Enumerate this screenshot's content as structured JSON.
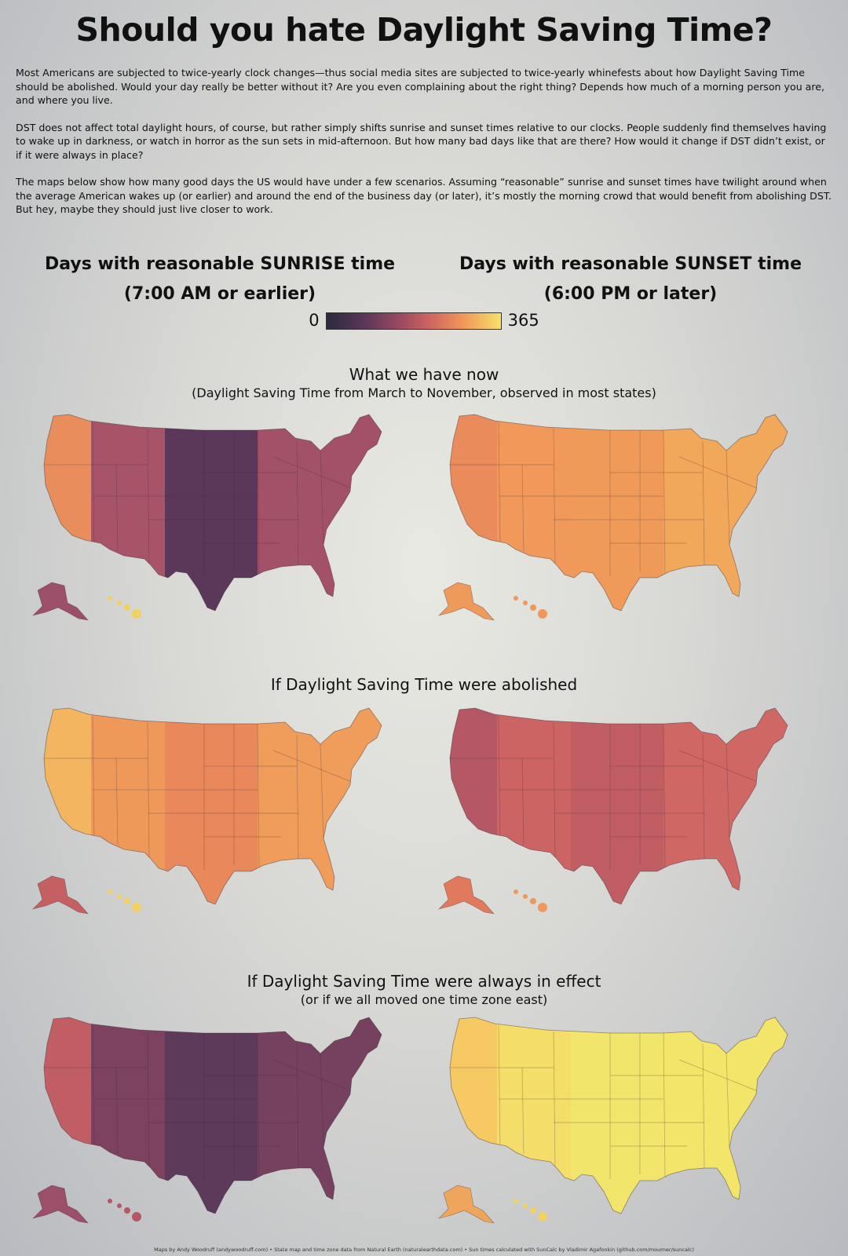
{
  "title": "Should you hate Daylight Saving Time?",
  "intro": [
    "Most Americans are subjected to twice-yearly clock changes—thus social media sites are subjected to twice-yearly whinefests about how Daylight Saving Time should be abolished. Would your day really be better without it? Are you even complaining about the right thing? Depends how much of a morning person you are, and where you live.",
    "DST does not affect total daylight hours, of course, but rather simply shifts sunrise and sunset times relative to our clocks. People suddenly find themselves having to wake up in darkness, or watch in horror as the sun sets in mid-afternoon. But how many bad days like that are there? How would it change if DST didn’t exist, or if it were always in place?",
    "The maps below show how many good days the US would have under a few scenarios. Assuming “reasonable” sunrise and sunset times have twilight around when the average American wakes up (or earlier) and around the end of the business day (or later), it’s mostly the morning crowd that would benefit from abolishing DST. But hey, maybe they should just live closer to work."
  ],
  "columns": {
    "sunrise_title": "Days with reasonable SUNRISE time",
    "sunrise_sub": "(7:00 AM or earlier)",
    "sunset_title": "Days with reasonable SUNSET time",
    "sunset_sub": "(6:00 PM or later)"
  },
  "legend": {
    "min": "0",
    "max": "365",
    "colors": [
      "#2b2b3d",
      "#5b3659",
      "#9a4a62",
      "#d0675f",
      "#f0955a",
      "#f6e16a"
    ]
  },
  "scenarios": [
    {
      "title": "What we have now",
      "subtitle": "(Daylight Saving Time from March to November, observed in most states)",
      "sunrise_zone_colors": [
        "#e98d5d",
        "#a75468",
        "#5b3859",
        "#a35168"
      ],
      "sunset_zone_colors": [
        "#e98b5b",
        "#f0995a",
        "#ef9a58",
        "#f2a85a"
      ],
      "sunrise_alaska": "#9c4f68",
      "sunrise_hawaii": "#f3d062",
      "sunset_alaska": "#ed9a5a",
      "sunset_hawaii": "#ef9859"
    },
    {
      "title": "If Daylight Saving Time were abolished",
      "subtitle": "",
      "sunrise_zone_colors": [
        "#f3b560",
        "#ee995a",
        "#e8885b",
        "#f09c5b"
      ],
      "sunset_zone_colors": [
        "#b55765",
        "#cb6463",
        "#c15e63",
        "#cf6864"
      ],
      "sunrise_alaska": "#c56062",
      "sunrise_hawaii": "#f3d062",
      "sunset_alaska": "#e17a5d",
      "sunset_hawaii": "#ef9859"
    },
    {
      "title": "If Daylight Saving Time were always in effect",
      "subtitle": "(or if we all moved one time zone east)",
      "sunrise_zone_colors": [
        "#c15e63",
        "#7c4260",
        "#5d395a",
        "#76405f"
      ],
      "sunset_zone_colors": [
        "#f6c963",
        "#f4dd68",
        "#f1e56b",
        "#f3e46a"
      ],
      "sunrise_alaska": "#9c4f68",
      "sunrise_hawaii": "#b55765",
      "sunset_alaska": "#f0a55c",
      "sunset_hawaii": "#f3d062"
    }
  ],
  "footer": "Maps by Andy Woodruff (andywoodruff.com) • State map and time zone data from Natural Earth (naturalearthdata.com) • Sun times calculated with SunCalc by Vladimir Agafonkin (github.com/mourner/suncalc)"
}
